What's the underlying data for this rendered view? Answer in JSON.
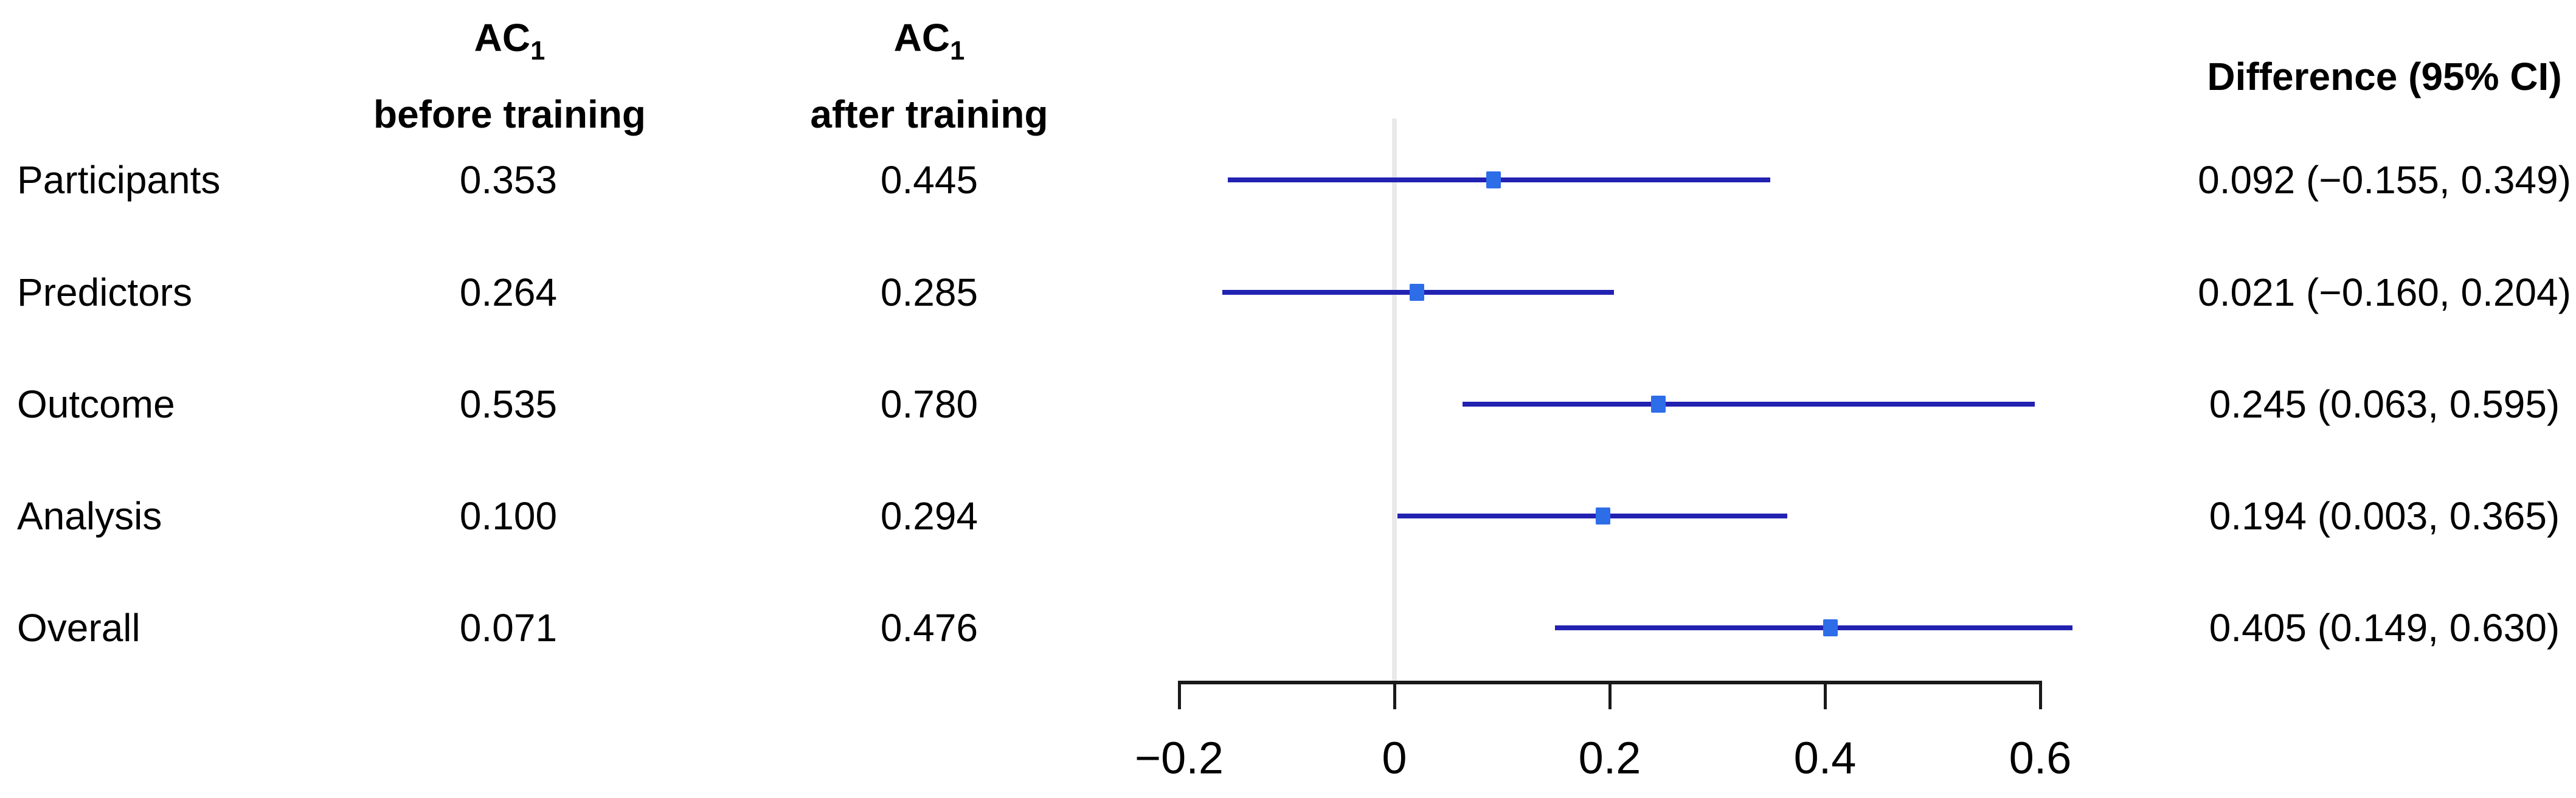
{
  "chart_data": {
    "type": "forest",
    "columns": {
      "before": {
        "line1": "AC",
        "sub": "1",
        "line2": "before training"
      },
      "after": {
        "line1": "AC",
        "sub": "1",
        "line2": "after training"
      },
      "diff_header": "Difference (95% CI)"
    },
    "rows": [
      {
        "label": "Participants",
        "before": "0.353",
        "after": "0.445",
        "diff": 0.092,
        "lo": -0.155,
        "hi": 0.349,
        "diff_text": "0.092 (−0.155, 0.349)"
      },
      {
        "label": "Predictors",
        "before": "0.264",
        "after": "0.285",
        "diff": 0.021,
        "lo": -0.16,
        "hi": 0.204,
        "diff_text": "0.021 (−0.160, 0.204)"
      },
      {
        "label": "Outcome",
        "before": "0.535",
        "after": "0.780",
        "diff": 0.245,
        "lo": 0.063,
        "hi": 0.595,
        "diff_text": "0.245 (0.063, 0.595)"
      },
      {
        "label": "Analysis",
        "before": "0.100",
        "after": "0.294",
        "diff": 0.194,
        "lo": 0.003,
        "hi": 0.365,
        "diff_text": "0.194 (0.003, 0.365)"
      },
      {
        "label": "Overall",
        "before": "0.071",
        "after": "0.476",
        "diff": 0.405,
        "lo": 0.149,
        "hi": 0.63,
        "diff_text": "0.405 (0.149, 0.630)"
      }
    ],
    "axis": {
      "min": -0.2,
      "max": 0.6,
      "ticks": [
        -0.2,
        0,
        0.2,
        0.4,
        0.6
      ],
      "tick_labels": [
        "−0.2",
        "0",
        "0.2",
        "0.4",
        "0.6"
      ],
      "ref_line": 0
    },
    "colors": {
      "ci_line": "#2222b2",
      "marker": "#2e6de8",
      "ref_line": "#e9e9e9",
      "axis": "#1a1a1a",
      "text": "#000000"
    }
  }
}
